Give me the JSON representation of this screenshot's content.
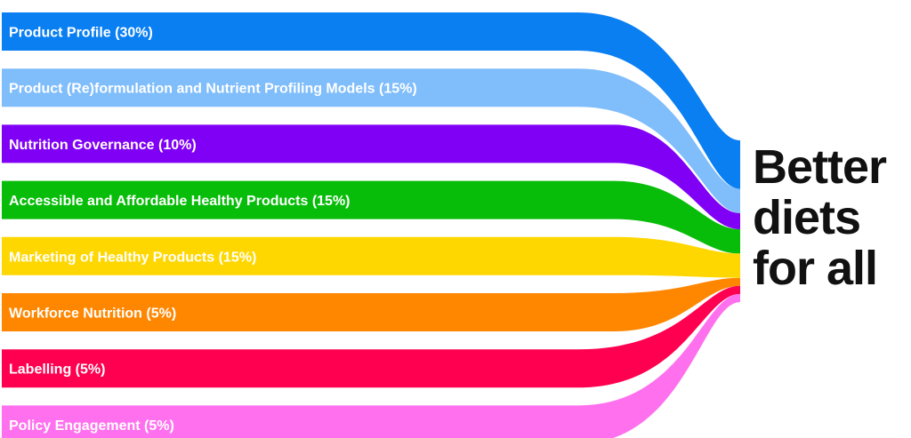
{
  "chart_data": {
    "type": "sankey",
    "target": {
      "lines": [
        "Better",
        "diets",
        "for all"
      ]
    },
    "flows": [
      {
        "label": "Product Profile (30%)",
        "value": 30,
        "color": "#0a7ff2"
      },
      {
        "label": "Product (Re)formulation and Nutrient Profiling Models (15%)",
        "value": 15,
        "color": "#7fbdfb"
      },
      {
        "label": "Nutrition Governance (10%)",
        "value": 10,
        "color": "#8000f5"
      },
      {
        "label": "Accessible and Affordable Healthy Products (15%)",
        "value": 15,
        "color": "#08bd0a"
      },
      {
        "label": "Marketing of Healthy Products (15%)",
        "value": 15,
        "color": "#ffd700"
      },
      {
        "label": "Workforce Nutrition (5%)",
        "value": 5,
        "color": "#ff8700"
      },
      {
        "label": "Labelling (5%)",
        "value": 5,
        "color": "#ff0050"
      },
      {
        "label": "Policy Engagement (5%)",
        "value": 5,
        "color": "#ff70ee"
      }
    ]
  }
}
